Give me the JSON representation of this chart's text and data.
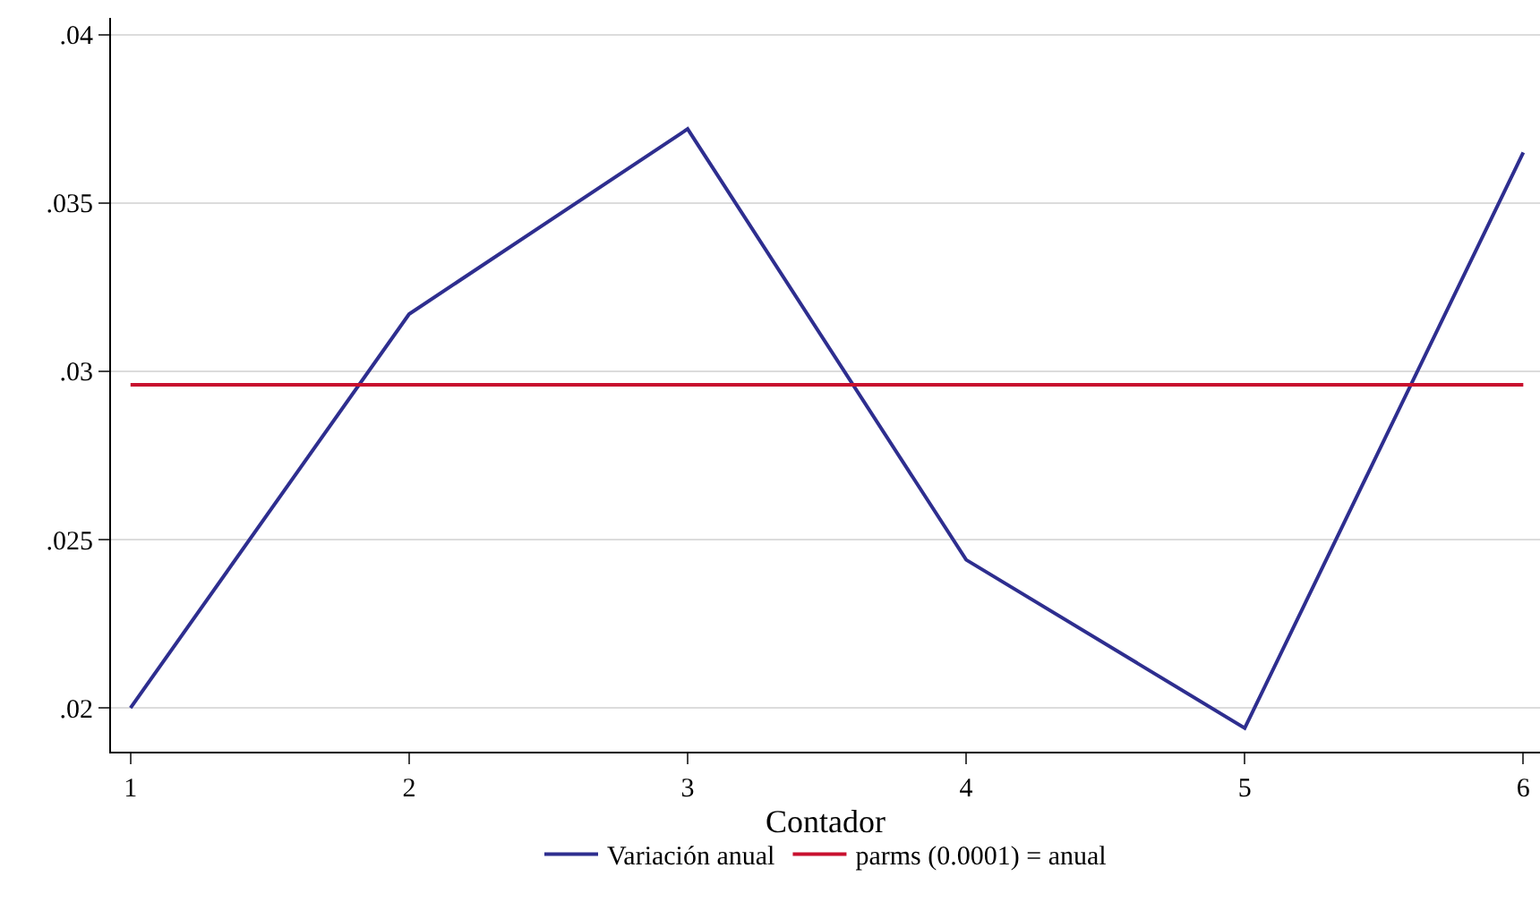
{
  "chart_data": {
    "type": "line",
    "xlabel": "Contador",
    "x": [
      1,
      2,
      3,
      4,
      5,
      6
    ],
    "series": [
      {
        "name": "Variación anual",
        "color": "#2e2e8f",
        "values": [
          0.02,
          0.0317,
          0.0372,
          0.0244,
          0.0194,
          0.0365
        ]
      },
      {
        "name": "parms (0.0001) = anual",
        "color": "#c8102e",
        "values": [
          0.0296,
          0.0296,
          0.0296,
          0.0296,
          0.0296,
          0.0296
        ]
      }
    ],
    "xlim": [
      0.93,
      6.06
    ],
    "xticks": [
      1,
      2,
      3,
      4,
      5,
      6
    ],
    "ylim": [
      0.0187,
      0.0405
    ],
    "yticks": [
      {
        "value": 0.02,
        "label": ".02"
      },
      {
        "value": 0.025,
        "label": ".025"
      },
      {
        "value": 0.03,
        "label": ".03"
      },
      {
        "value": 0.035,
        "label": ".035"
      },
      {
        "value": 0.04,
        "label": ".04"
      }
    ],
    "grid": "y",
    "legend": "bottom",
    "marker": "none",
    "line_style": "solid"
  }
}
